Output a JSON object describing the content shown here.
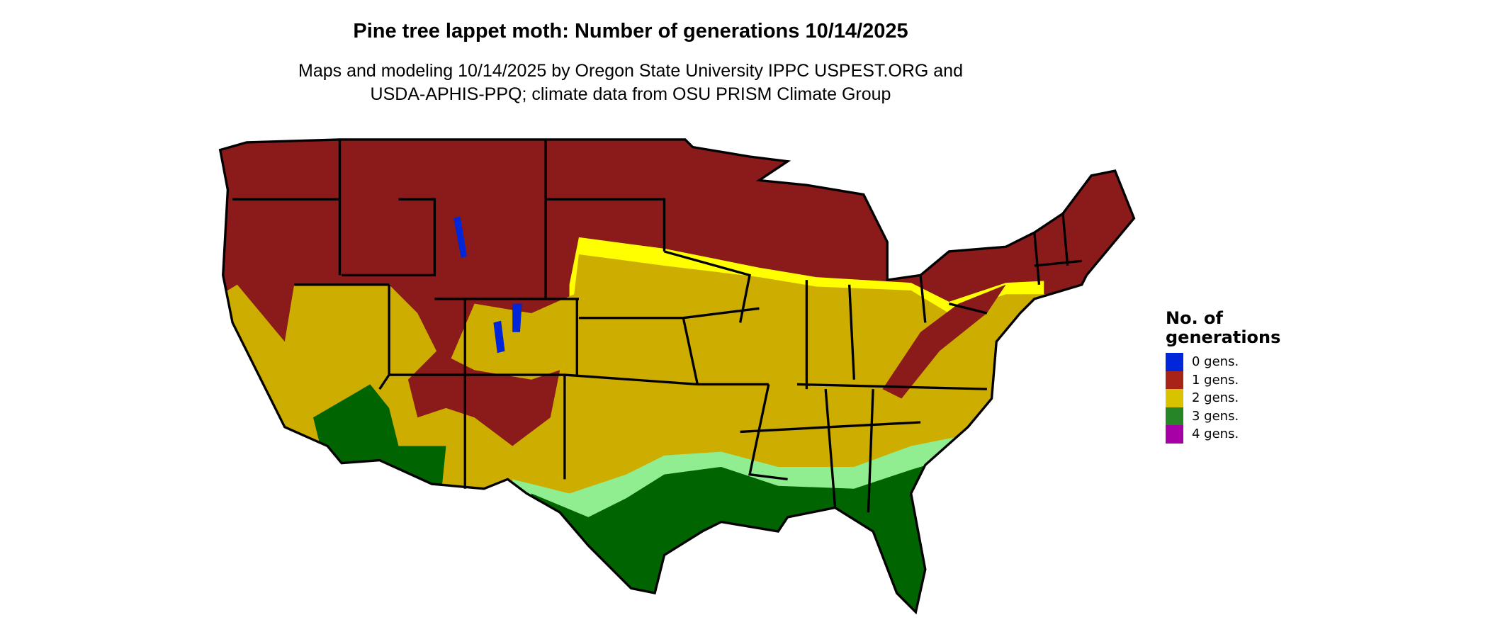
{
  "title": "Pine tree lappet moth: Number of generations 10/14/2025",
  "subtitle_line1": "Maps and modeling 10/14/2025 by Oregon State University IPPC USPEST.ORG and",
  "subtitle_line2": "USDA-APHIS-PPQ; climate data from OSU PRISM Climate Group",
  "legend": {
    "title_line1": "No. of",
    "title_line2": "generations",
    "items": [
      {
        "label": "0 gens.",
        "color": "#0026d9"
      },
      {
        "label": "1 gens.",
        "color": "#a82417"
      },
      {
        "label": "2 gens.",
        "color": "#d9c200"
      },
      {
        "label": "3 gens.",
        "color": "#268526"
      },
      {
        "label": "4 gens.",
        "color": "#a600a6"
      }
    ]
  },
  "map_colors": {
    "one_gen_dark": "#8b1a1a",
    "two_gen_fill": "#cdad00",
    "two_gen_bright": "#ffff00",
    "three_gen_light": "#90ee90",
    "three_gen_dark": "#006400",
    "zero_gen": "#0026d9",
    "borders": "#000000"
  }
}
